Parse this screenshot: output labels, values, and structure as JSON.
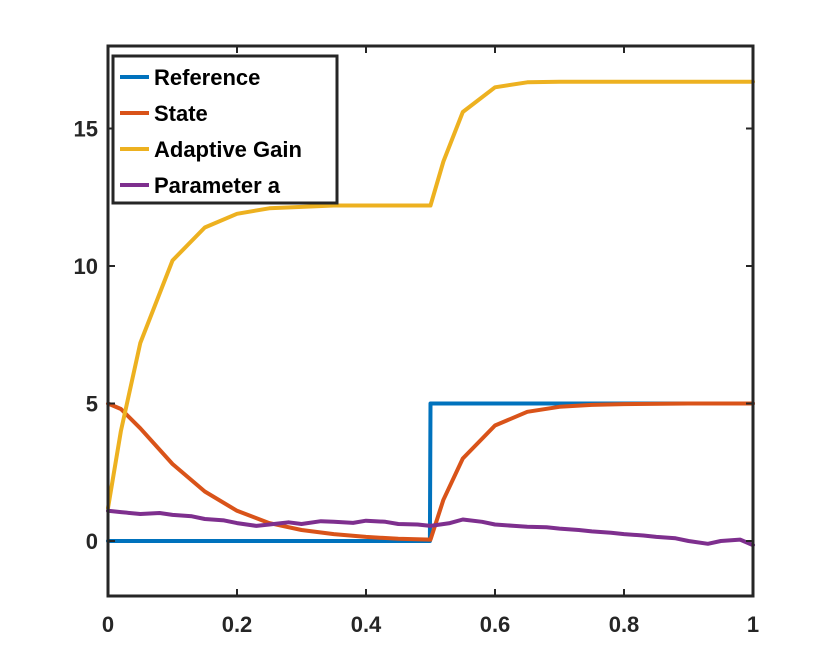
{
  "chart_data": {
    "type": "line",
    "title": "",
    "xlabel": "",
    "ylabel": "",
    "xlim": [
      0,
      1
    ],
    "ylim": [
      -2,
      18
    ],
    "x_ticks": [
      0,
      0.2,
      0.4,
      0.6,
      0.8,
      1
    ],
    "x_tick_labels": [
      "0",
      "0.2",
      "0.4",
      "0.6",
      "0.8",
      "1"
    ],
    "y_ticks": [
      0,
      5,
      10,
      15
    ],
    "y_tick_labels": [
      "0",
      "5",
      "10",
      "15"
    ],
    "grid": false,
    "legend_position": "top-left",
    "series": [
      {
        "name": "Reference",
        "color": "#0072BD",
        "x": [
          0,
          0.499,
          0.5,
          1
        ],
        "y": [
          0,
          0,
          5,
          5
        ]
      },
      {
        "name": "State",
        "color": "#D95319",
        "x": [
          0,
          0.02,
          0.05,
          0.1,
          0.15,
          0.2,
          0.25,
          0.3,
          0.35,
          0.4,
          0.45,
          0.5,
          0.52,
          0.55,
          0.6,
          0.65,
          0.7,
          0.75,
          0.8,
          0.9,
          1
        ],
        "y": [
          5.0,
          4.8,
          4.1,
          2.8,
          1.8,
          1.1,
          0.65,
          0.4,
          0.25,
          0.15,
          0.08,
          0.05,
          1.5,
          3.0,
          4.2,
          4.7,
          4.88,
          4.95,
          4.98,
          5.0,
          5.0
        ]
      },
      {
        "name": "Adaptive Gain",
        "color": "#EDB120",
        "x": [
          0,
          0.02,
          0.05,
          0.1,
          0.15,
          0.2,
          0.25,
          0.3,
          0.35,
          0.4,
          0.45,
          0.5,
          0.52,
          0.55,
          0.6,
          0.65,
          0.7,
          0.8,
          0.9,
          1
        ],
        "y": [
          1.2,
          4.0,
          7.2,
          10.2,
          11.4,
          11.9,
          12.1,
          12.15,
          12.2,
          12.2,
          12.2,
          12.2,
          13.8,
          15.6,
          16.5,
          16.68,
          16.7,
          16.7,
          16.7,
          16.7
        ]
      },
      {
        "name": "Parameter a",
        "color": "#7E2F8E",
        "x": [
          0,
          0.02,
          0.05,
          0.08,
          0.1,
          0.13,
          0.15,
          0.18,
          0.2,
          0.23,
          0.25,
          0.28,
          0.3,
          0.33,
          0.35,
          0.38,
          0.4,
          0.43,
          0.45,
          0.48,
          0.5,
          0.53,
          0.55,
          0.58,
          0.6,
          0.63,
          0.65,
          0.68,
          0.7,
          0.73,
          0.75,
          0.78,
          0.8,
          0.83,
          0.85,
          0.88,
          0.9,
          0.93,
          0.95,
          0.98,
          1
        ],
        "y": [
          1.1,
          1.05,
          0.98,
          1.02,
          0.95,
          0.9,
          0.8,
          0.75,
          0.65,
          0.55,
          0.6,
          0.68,
          0.62,
          0.72,
          0.7,
          0.66,
          0.74,
          0.7,
          0.62,
          0.6,
          0.55,
          0.65,
          0.78,
          0.7,
          0.6,
          0.55,
          0.52,
          0.5,
          0.45,
          0.4,
          0.35,
          0.3,
          0.25,
          0.2,
          0.15,
          0.1,
          0.0,
          -0.1,
          0.0,
          0.05,
          -0.15
        ]
      }
    ]
  }
}
